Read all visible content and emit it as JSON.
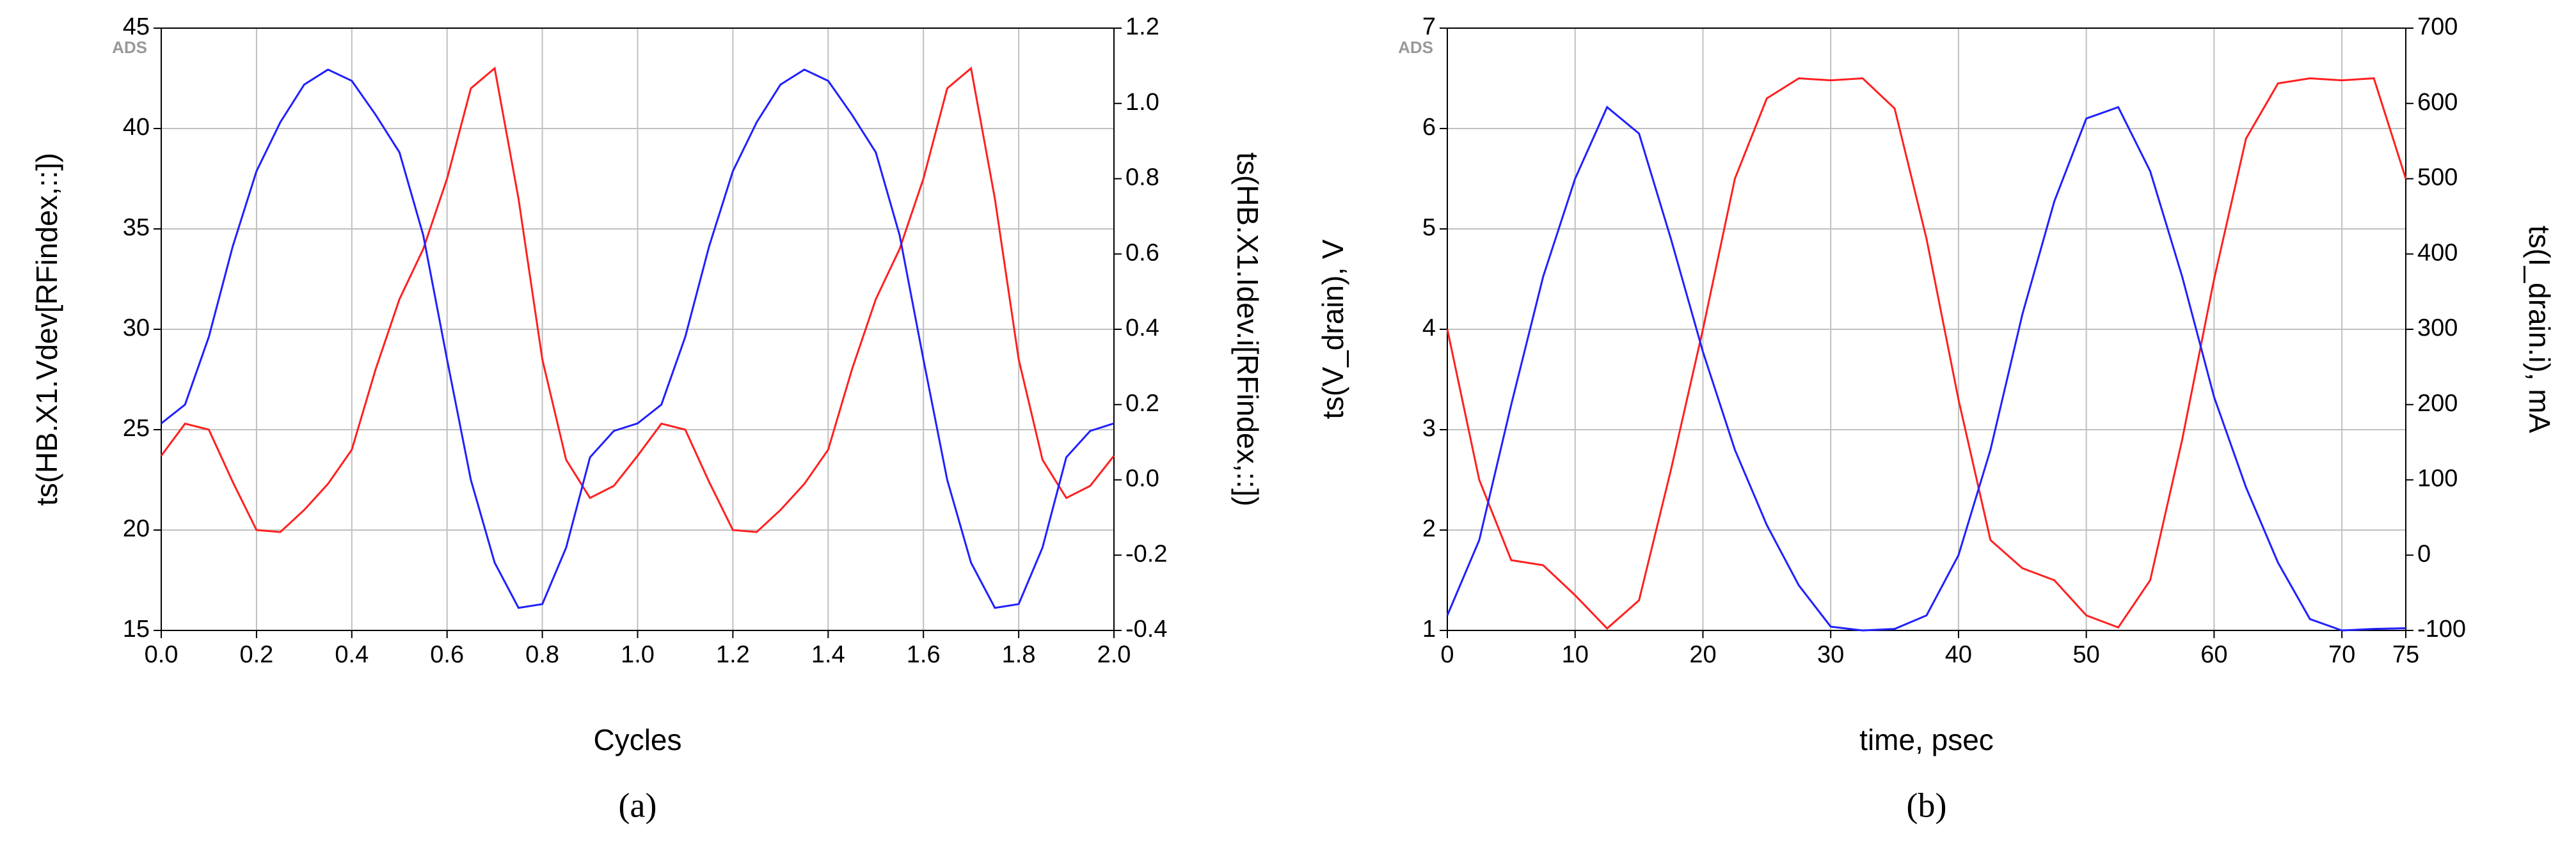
{
  "chart_data": [
    {
      "type": "line",
      "watermark": "ADS",
      "caption": "(a)",
      "xlabel": "Cycles",
      "ylabel": "ts(HB.X1.Vdev[RFindex,::])",
      "y2label": "ts(HB.X1.Idev.i[RFindex,::])",
      "x": [
        0,
        0.05,
        0.1,
        0.15,
        0.2,
        0.25,
        0.3,
        0.35,
        0.4,
        0.45,
        0.5,
        0.55,
        0.6,
        0.65,
        0.7,
        0.75,
        0.8,
        0.85,
        0.9,
        0.95,
        1.0,
        1.05,
        1.1,
        1.15,
        1.2,
        1.25,
        1.3,
        1.35,
        1.4,
        1.45,
        1.5,
        1.55,
        1.6,
        1.65,
        1.7,
        1.75,
        1.8,
        1.85,
        1.9,
        1.95,
        2.0
      ],
      "series": [
        {
          "name": "ts(HB.X1.Vdev[RFindex,::])",
          "color": "#ff2020",
          "values": [
            23.7,
            25.3,
            25.0,
            22.4,
            20.0,
            19.9,
            21.0,
            22.3,
            24.0,
            28.0,
            31.5,
            34.0,
            37.5,
            42.0,
            43.0,
            36.5,
            28.5,
            23.5,
            21.6,
            22.2,
            23.7,
            25.3,
            25.0,
            22.4,
            20.0,
            19.9,
            21.0,
            22.3,
            24.0,
            28.0,
            31.5,
            34.0,
            37.5,
            42.0,
            43.0,
            36.5,
            28.5,
            23.5,
            21.6,
            22.2,
            23.7
          ]
        },
        {
          "name": "ts(HB.X1.Idev.i[RFindex,::])",
          "color": "#2020ff",
          "axis": "y2",
          "values": [
            0.15,
            0.2,
            0.38,
            0.62,
            0.82,
            0.95,
            1.05,
            1.09,
            1.06,
            0.97,
            0.87,
            0.65,
            0.32,
            0.0,
            -0.22,
            -0.34,
            -0.33,
            -0.18,
            0.06,
            0.13,
            0.15,
            0.2,
            0.38,
            0.62,
            0.82,
            0.95,
            1.05,
            1.09,
            1.06,
            0.97,
            0.87,
            0.65,
            0.32,
            0.0,
            -0.22,
            -0.34,
            -0.33,
            -0.18,
            0.06,
            0.13,
            0.15
          ]
        }
      ],
      "xlim": [
        0,
        2
      ],
      "xticks": [
        {
          "value": 0,
          "label": "0.0"
        },
        0.2,
        0.4,
        0.6,
        0.8,
        {
          "value": 1,
          "label": "1.0"
        },
        1.2,
        1.4,
        1.6,
        1.8,
        {
          "value": 2,
          "label": "2.0"
        }
      ],
      "ylim": [
        15,
        45
      ],
      "yticks": [
        15,
        20,
        25,
        30,
        35,
        40,
        45
      ],
      "y2lim": [
        -0.4,
        1.2
      ],
      "y2ticks": [
        -0.4,
        -0.2,
        {
          "value": 0,
          "label": "0.0"
        },
        0.2,
        0.4,
        0.6,
        0.8,
        {
          "value": 1,
          "label": "1.0"
        },
        1.2
      ],
      "grid": true
    },
    {
      "type": "line",
      "watermark": "ADS",
      "caption": "(b)",
      "xlabel": "time, psec",
      "ylabel": "ts(V_drain), V",
      "y2label": "ts(I_drain.i), mA",
      "x": [
        0,
        2.5,
        5,
        7.5,
        10,
        12.5,
        15,
        17.5,
        20,
        22.5,
        25,
        27.5,
        30,
        32.5,
        35,
        37.5,
        40,
        42.5,
        45,
        47.5,
        50,
        52.5,
        55,
        57.5,
        60,
        62.5,
        65,
        67.5,
        70,
        72.5,
        75
      ],
      "series": [
        {
          "name": "ts(V_drain), V",
          "color": "#ff2020",
          "values": [
            4.0,
            2.5,
            1.7,
            1.65,
            1.35,
            1.02,
            1.3,
            2.6,
            4.0,
            5.5,
            6.3,
            6.5,
            6.48,
            6.5,
            6.2,
            4.9,
            3.3,
            1.9,
            1.62,
            1.5,
            1.15,
            1.03,
            1.5,
            2.9,
            4.5,
            5.9,
            6.45,
            6.5,
            6.48,
            6.5,
            5.5
          ]
        },
        {
          "name": "ts(I_drain.i), mA",
          "color": "#2020ff",
          "axis": "y2",
          "values": [
            -80,
            20,
            200,
            370,
            500,
            595,
            560,
            420,
            270,
            140,
            40,
            -40,
            -95,
            -100,
            -98,
            -80,
            0,
            140,
            320,
            470,
            580,
            595,
            510,
            370,
            210,
            90,
            -10,
            -85,
            -100,
            -98,
            -97
          ]
        }
      ],
      "xlim": [
        0,
        75
      ],
      "xticks": [
        0,
        10,
        20,
        30,
        40,
        50,
        60,
        70,
        75
      ],
      "ylim": [
        1,
        7
      ],
      "yticks": [
        1,
        2,
        3,
        4,
        5,
        6,
        7
      ],
      "y2lim": [
        -100,
        700
      ],
      "y2ticks": [
        -100,
        0,
        100,
        200,
        300,
        400,
        500,
        600,
        700
      ],
      "grid": true
    }
  ]
}
